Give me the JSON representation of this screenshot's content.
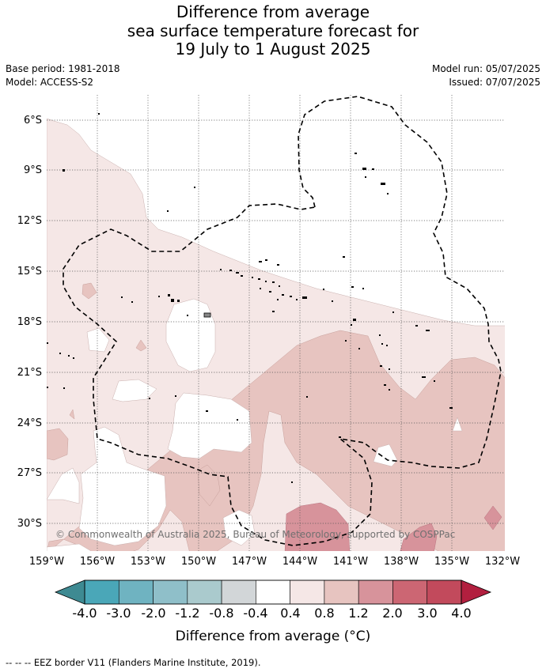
{
  "title": {
    "line1": "Difference from average",
    "line2": "sea surface temperature forecast for",
    "line3": "19 July to 1 August 2025"
  },
  "meta": {
    "base_period": "Base period: 1981-2018",
    "model": "Model: ACCESS-S2",
    "model_run": "Model run: 05/07/2025",
    "issued": "Issued: 07/07/2025"
  },
  "axes": {
    "lat_labels": [
      "6°S",
      "9°S",
      "12°S",
      "15°S",
      "18°S",
      "21°S",
      "24°S",
      "27°S",
      "30°S"
    ],
    "lon_labels": [
      "159°W",
      "156°W",
      "153°W",
      "150°W",
      "147°W",
      "144°W",
      "141°W",
      "138°W",
      "135°W",
      "132°W"
    ]
  },
  "colorbar": {
    "labels": [
      "-4.0",
      "-3.0",
      "-2.0",
      "-1.2",
      "-0.8",
      "-0.4",
      "0.4",
      "0.8",
      "1.2",
      "2.0",
      "3.0",
      "4.0"
    ],
    "colors": [
      "#4aa7b8",
      "#6fb3c1",
      "#8fbfc9",
      "#aacacd",
      "#d2d6d8",
      "#ffffff",
      "#f5e7e6",
      "#e7c4c0",
      "#d7939b",
      "#cc6673",
      "#c24a5c"
    ],
    "under_color": "#3e8a92",
    "over_color": "#b21f3f",
    "title": "Difference from average (°C)"
  },
  "copyright": "© Commonwealth of Australia 2025, Bureau of Meteorology, supported by COSPPac",
  "legend_note": "-- -- -- EEZ border V11 (Flanders Marine Institute, 2019)."
}
